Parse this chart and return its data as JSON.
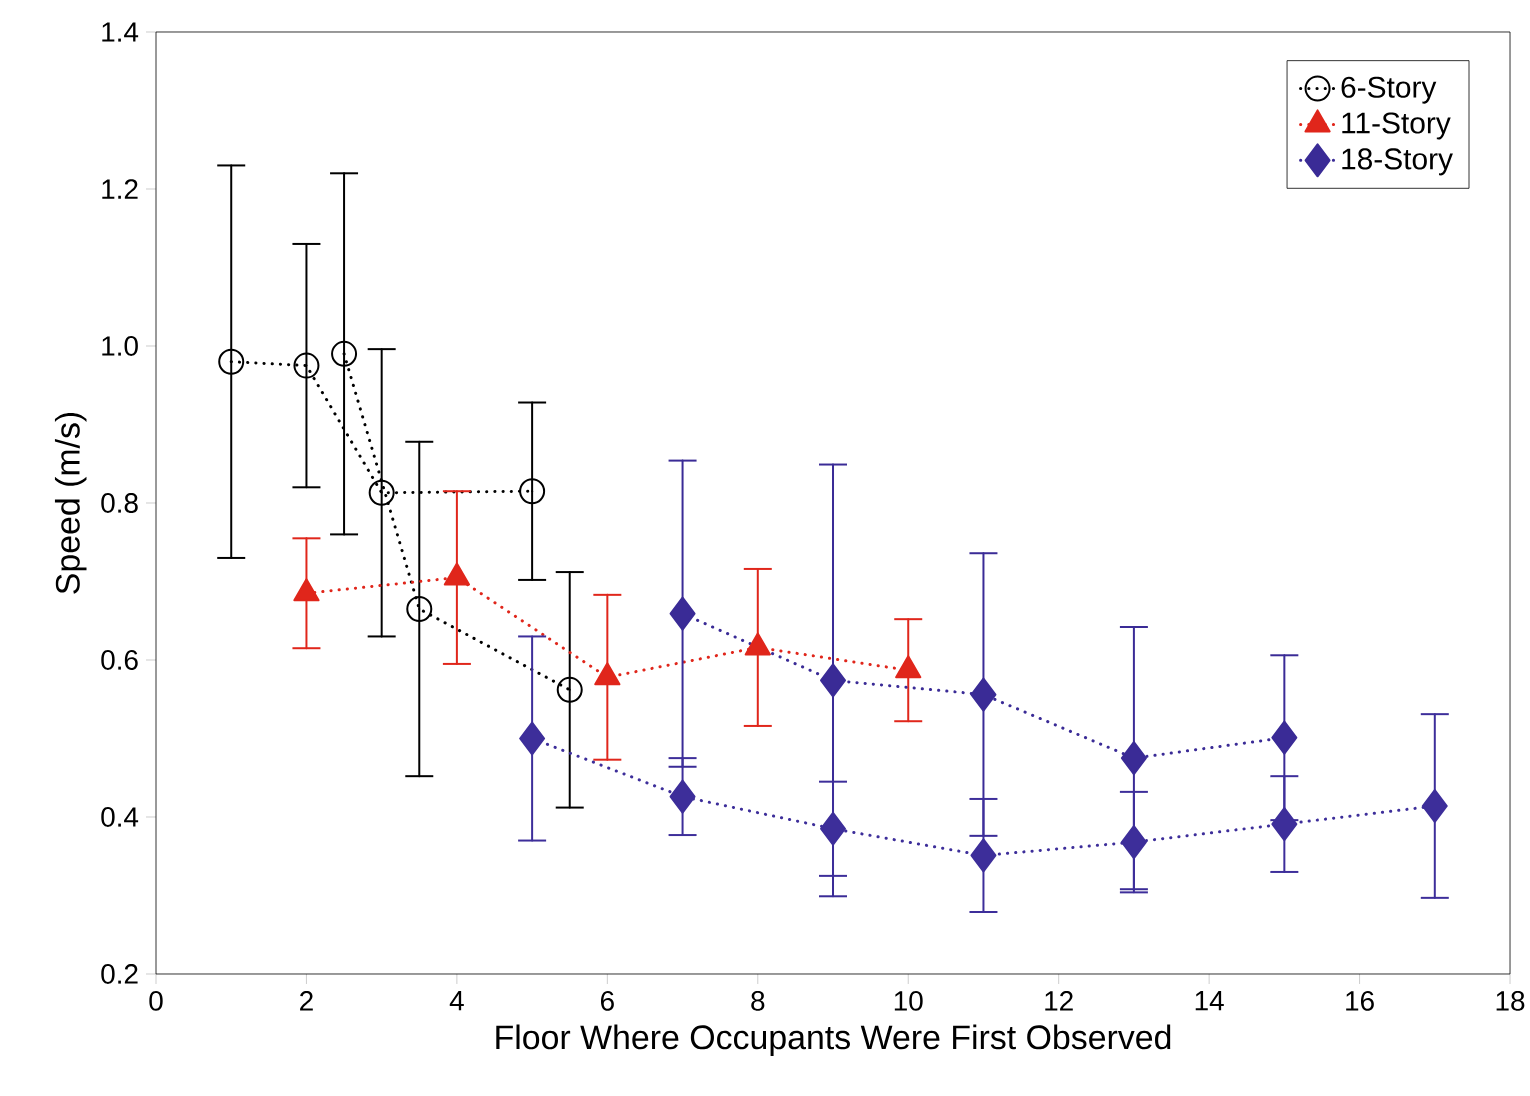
{
  "chart_data": {
    "type": "line",
    "xlabel": "Floor Where Occupants Were First Observed",
    "ylabel": "Speed (m/s)",
    "xlim": [
      0,
      18
    ],
    "ylim": [
      0.2,
      1.4
    ],
    "xticks": [
      0,
      2,
      4,
      6,
      8,
      10,
      12,
      14,
      16,
      18
    ],
    "yticks": [
      0.2,
      0.4,
      0.6,
      0.8,
      {
        "value": 1,
        "label": "1.0"
      },
      1.2,
      1.4
    ],
    "legend": "top right",
    "line_style": "dotted",
    "grid": false,
    "series": [
      {
        "name": "6-Story",
        "color": "#000000",
        "marker": "circle",
        "x": [
          1,
          2,
          3,
          5
        ],
        "values": [
          0.98,
          0.975,
          0.813,
          0.815
        ],
        "errors": [
          0.25,
          0.155,
          0.183,
          0.113
        ]
      },
      {
        "color": "#000000",
        "marker": "circle",
        "x": [
          2.5,
          3.5,
          5.5
        ],
        "values": [
          0.99,
          0.665,
          0.562
        ],
        "errors": [
          0.23,
          0.213,
          0.15
        ]
      },
      {
        "name": "11-Story",
        "color": "#e0261b",
        "marker": "triangle",
        "x": [
          2,
          4,
          6,
          8,
          10
        ],
        "values": [
          0.685,
          0.705,
          0.578,
          0.616,
          0.587
        ],
        "errors": [
          0.07,
          0.11,
          0.105,
          0.1,
          0.065
        ]
      },
      {
        "name": "18-Story",
        "color": "#3a2b96",
        "marker": "diamond",
        "x": [
          7,
          9,
          11,
          13,
          15
        ],
        "values": [
          0.659,
          0.574,
          0.556,
          0.475,
          0.501
        ],
        "errors": [
          0.195,
          0.275,
          0.18,
          0.167,
          0.105
        ]
      },
      {
        "color": "#3d2e9a",
        "marker": "diamond",
        "x": [
          5,
          7,
          9,
          11,
          13,
          15,
          17
        ],
        "values": [
          0.5,
          0.426,
          0.385,
          0.351,
          0.368,
          0.391,
          0.414
        ],
        "errors": [
          0.13,
          0.049,
          0.06,
          0.072,
          0.064,
          0.061,
          0.117
        ]
      }
    ]
  }
}
